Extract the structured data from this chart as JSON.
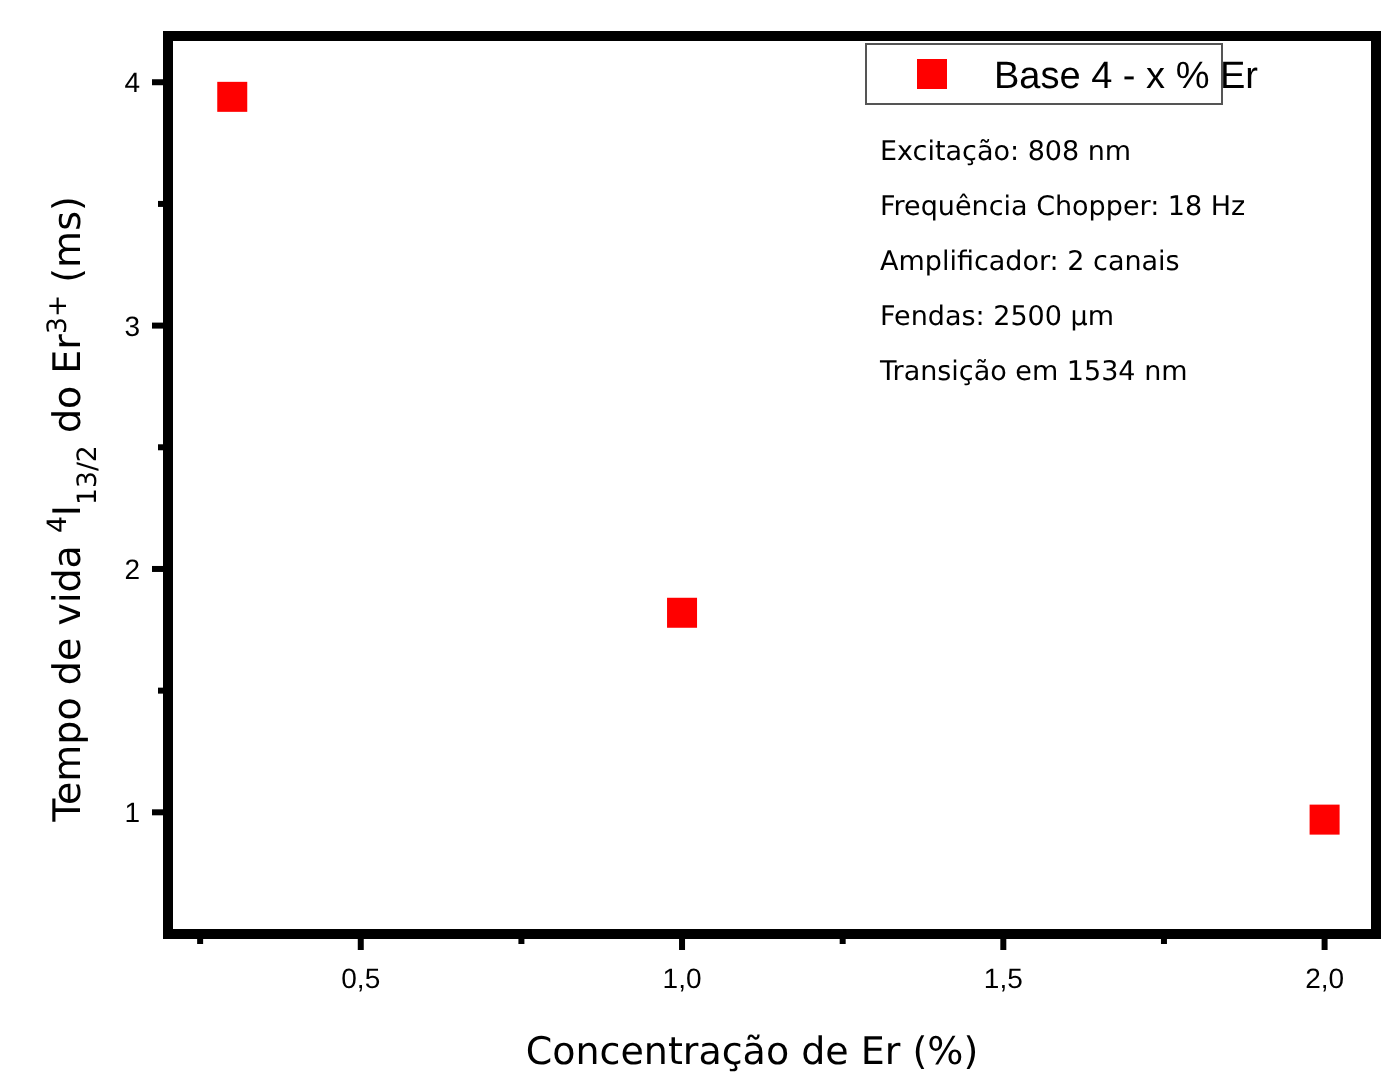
{
  "chart_data": {
    "type": "scatter",
    "xlabel": "Concentração de Er (%)",
    "ylabel": "Tempo de vida $^{4}$I$_{13/2}$ do Er$^{3+}$ (ms)",
    "x": [
      0.3,
      1.0,
      2.0
    ],
    "series": [
      {
        "name": "Base 4 - x % Er",
        "color": "#ff0000",
        "values": [
          3.94,
          1.82,
          0.97
        ]
      }
    ],
    "xlim": [
      0.2,
      2.08
    ],
    "ylim": [
      0.5,
      4.19
    ],
    "xticks": [
      {
        "value": 0.25,
        "label": null
      },
      {
        "value": 0.5,
        "label": "0,5"
      },
      {
        "value": 0.75,
        "label": null
      },
      {
        "value": 1.0,
        "label": "1,0"
      },
      {
        "value": 1.25,
        "label": null
      },
      {
        "value": 1.5,
        "label": "1,5"
      },
      {
        "value": 1.75,
        "label": null
      },
      {
        "value": 2.0,
        "label": "2,0"
      }
    ],
    "yticks": [
      {
        "value": 1,
        "label": "1"
      },
      {
        "value": 1.5,
        "label": null
      },
      {
        "value": 2,
        "label": "2"
      },
      {
        "value": 2.5,
        "label": null
      },
      {
        "value": 3,
        "label": "3"
      },
      {
        "value": 3.5,
        "label": null
      },
      {
        "value": 4,
        "label": "4"
      }
    ],
    "annotations": [
      "Excitação: 808 nm",
      "Frequência Chopper: 18 Hz",
      "Amplificador: 2 canais",
      "Fendas: 2500 µm",
      "Transição em 1534 nm"
    ],
    "marker": "square",
    "grid": false,
    "legend": "top right"
  }
}
